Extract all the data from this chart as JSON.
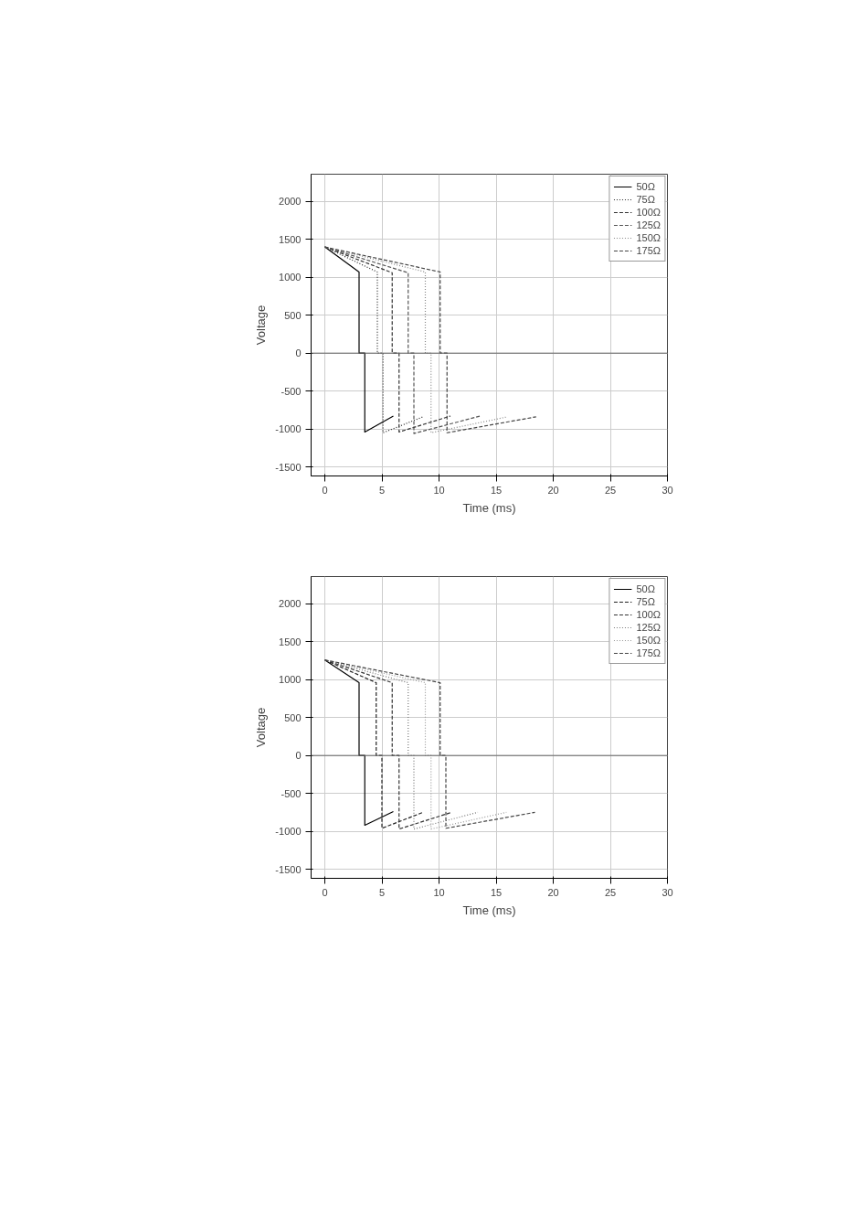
{
  "chart_data": [
    {
      "type": "line",
      "xlabel": "Time (ms)",
      "ylabel": "Voltage",
      "xlim": [
        -1.2,
        30
      ],
      "ylim": [
        -1620,
        2360
      ],
      "xticks": [
        0,
        5,
        10,
        15,
        20,
        25,
        30
      ],
      "yticks": [
        -1500,
        -1000,
        -500,
        0,
        500,
        1000,
        1500,
        2000
      ],
      "grid": true,
      "legend": "top right",
      "marker": "none",
      "series": [
        {
          "name": "50Ω",
          "color": "#000000",
          "line_style": "solid",
          "x": [
            0,
            3.0,
            3.0,
            3.5,
            3.5,
            6.0
          ],
          "values": [
            1400,
            1070,
            0,
            0,
            -1040,
            -830
          ]
        },
        {
          "name": "75Ω",
          "color": "#222222",
          "line_style": "dotted",
          "x": [
            0,
            4.6,
            4.6,
            5.1,
            5.1,
            8.6
          ],
          "values": [
            1400,
            1070,
            0,
            0,
            -1050,
            -840
          ]
        },
        {
          "name": "100Ω",
          "color": "#333333",
          "line_style": "dashed",
          "x": [
            0,
            5.9,
            5.9,
            6.5,
            6.5,
            11.0
          ],
          "values": [
            1400,
            1060,
            0,
            0,
            -1040,
            -830
          ]
        },
        {
          "name": "125Ω",
          "color": "#555555",
          "line_style": "dashed",
          "x": [
            0,
            7.3,
            7.3,
            7.8,
            7.8,
            13.6
          ],
          "values": [
            1400,
            1060,
            0,
            0,
            -1060,
            -830
          ]
        },
        {
          "name": "150Ω",
          "color": "#888888",
          "line_style": "dotted",
          "x": [
            0,
            8.8,
            8.8,
            9.3,
            9.3,
            16.0
          ],
          "values": [
            1400,
            1070,
            0,
            0,
            -1050,
            -840
          ]
        },
        {
          "name": "175Ω",
          "color": "#444444",
          "line_style": "dashed",
          "x": [
            0,
            10.1,
            10.1,
            10.7,
            10.7,
            18.5
          ],
          "values": [
            1400,
            1070,
            0,
            0,
            -1050,
            -840
          ]
        }
      ]
    },
    {
      "type": "line",
      "xlabel": "Time (ms)",
      "ylabel": "Voltage",
      "xlim": [
        -1.2,
        30
      ],
      "ylim": [
        -1620,
        2360
      ],
      "xticks": [
        0,
        5,
        10,
        15,
        20,
        25,
        30
      ],
      "yticks": [
        -1500,
        -1000,
        -500,
        0,
        500,
        1000,
        1500,
        2000
      ],
      "grid": true,
      "legend": "top right",
      "marker": "none",
      "series": [
        {
          "name": "50Ω",
          "color": "#000000",
          "line_style": "solid",
          "x": [
            0,
            3.0,
            3.0,
            3.5,
            3.5,
            6.0
          ],
          "values": [
            1260,
            960,
            0,
            0,
            -920,
            -740
          ]
        },
        {
          "name": "75Ω",
          "color": "#222222",
          "line_style": "dashed",
          "x": [
            0,
            4.5,
            4.5,
            5.0,
            5.0,
            8.6
          ],
          "values": [
            1260,
            960,
            0,
            0,
            -960,
            -750
          ]
        },
        {
          "name": "100Ω",
          "color": "#333333",
          "line_style": "dashed",
          "x": [
            0,
            5.9,
            5.9,
            6.5,
            6.5,
            11.1
          ],
          "values": [
            1260,
            960,
            0,
            0,
            -970,
            -750
          ]
        },
        {
          "name": "125Ω",
          "color": "#777777",
          "line_style": "dotted",
          "x": [
            0,
            7.3,
            7.3,
            7.8,
            7.8,
            13.4
          ],
          "values": [
            1260,
            960,
            0,
            0,
            -970,
            -750
          ]
        },
        {
          "name": "150Ω",
          "color": "#999999",
          "line_style": "dotted",
          "x": [
            0,
            8.8,
            8.8,
            9.3,
            9.3,
            15.9
          ],
          "values": [
            1260,
            960,
            0,
            0,
            -970,
            -750
          ]
        },
        {
          "name": "175Ω",
          "color": "#444444",
          "line_style": "dashed",
          "x": [
            0,
            10.1,
            10.1,
            10.6,
            10.6,
            18.4
          ],
          "values": [
            1260,
            960,
            0,
            0,
            -960,
            -750
          ]
        }
      ]
    }
  ]
}
